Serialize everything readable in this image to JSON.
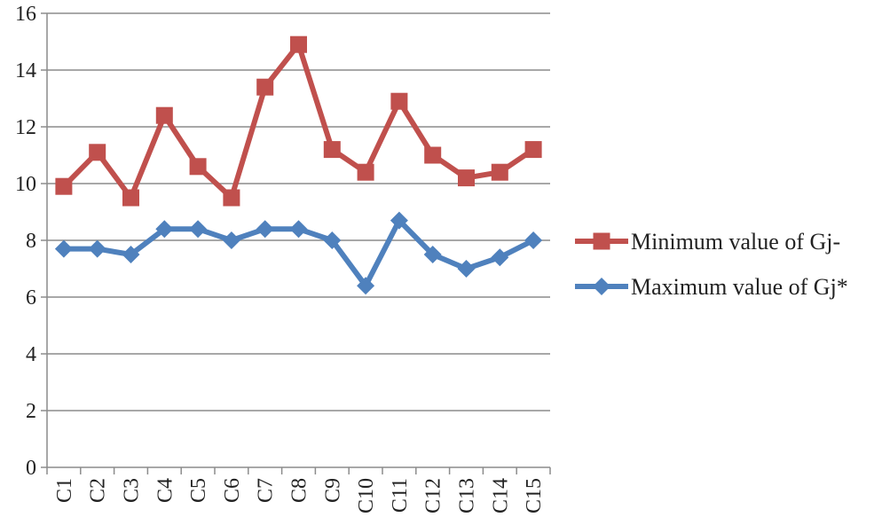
{
  "chart_data": {
    "type": "line",
    "title": "",
    "xlabel": "",
    "ylabel": "",
    "categories": [
      "C1",
      "C2",
      "C3",
      "C4",
      "C5",
      "C6",
      "C7",
      "C8",
      "C9",
      "C10",
      "C11",
      "C12",
      "C13",
      "C14",
      "C15"
    ],
    "ylim": [
      0,
      16
    ],
    "yticks": [
      0,
      2,
      4,
      6,
      8,
      10,
      12,
      14,
      16
    ],
    "grid": true,
    "legend_position": "right",
    "series": [
      {
        "name": "Minimum value of Gj-",
        "color": "#c0504d",
        "marker": "square",
        "values": [
          9.9,
          11.1,
          9.5,
          12.4,
          10.6,
          9.5,
          13.4,
          14.9,
          11.2,
          10.4,
          12.9,
          11.0,
          10.2,
          10.4,
          11.2
        ]
      },
      {
        "name": "Maximum value of Gj*",
        "color": "#4f81bd",
        "marker": "diamond",
        "values": [
          7.7,
          7.7,
          7.5,
          8.4,
          8.4,
          8.0,
          8.4,
          8.4,
          8.0,
          6.4,
          8.7,
          7.5,
          7.0,
          7.4,
          8.0
        ]
      }
    ]
  }
}
